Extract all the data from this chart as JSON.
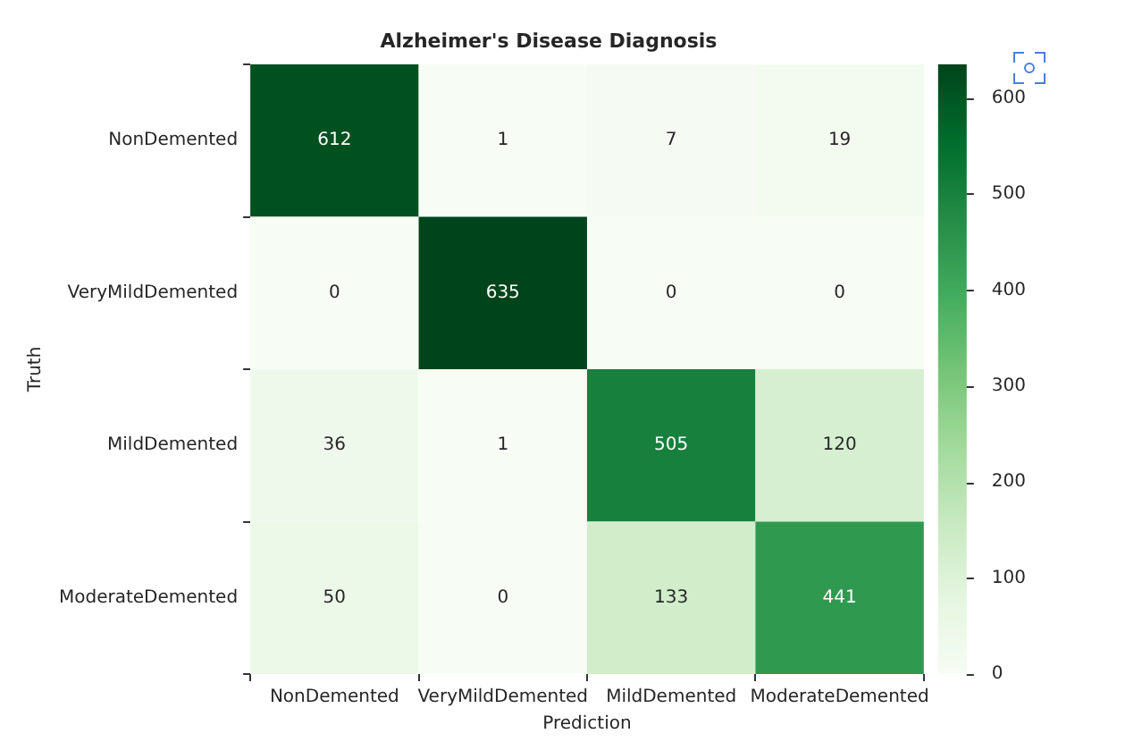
{
  "chart_data": {
    "type": "heatmap",
    "title": "Alzheimer's Disease Diagnosis",
    "xlabel": "Prediction",
    "ylabel": "Truth",
    "categories": [
      "NonDemented",
      "VeryMildDemented",
      "MildDemented",
      "ModerateDemented"
    ],
    "y_categories": [
      "NonDemented",
      "VeryMildDemented",
      "MildDemented",
      "ModerateDemented"
    ],
    "cells": [
      [
        612,
        1,
        7,
        19
      ],
      [
        0,
        635,
        0,
        0
      ],
      [
        36,
        1,
        505,
        120
      ],
      [
        50,
        0,
        133,
        441
      ]
    ],
    "clim": [
      0,
      635
    ],
    "cticks": [
      0,
      100,
      200,
      300,
      400,
      500,
      600
    ],
    "data_labels": true
  }
}
